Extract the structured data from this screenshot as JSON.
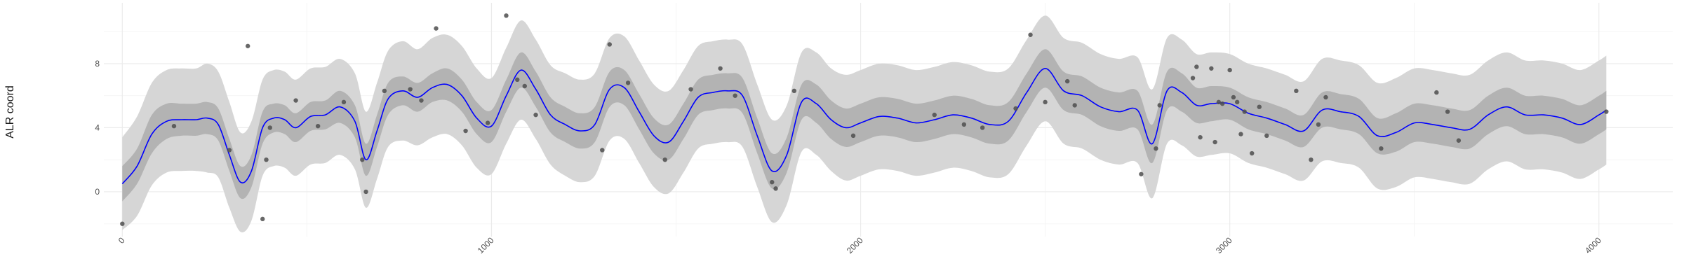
{
  "chart_data": {
    "type": "line",
    "title": "",
    "xlabel": "",
    "ylabel": "ALR coord",
    "xlim": [
      -50,
      4200
    ],
    "ylim": [
      -2.8,
      11.8
    ],
    "x_ticks": [
      0,
      1000,
      2000,
      3000,
      4000
    ],
    "x_tick_labels": [
      "0",
      "1000",
      "2000",
      "3000",
      "4000"
    ],
    "y_ticks": [
      0,
      4,
      8
    ],
    "y_tick_labels": [
      "0",
      "4",
      "8"
    ],
    "grid": true,
    "legend": "none",
    "colors": {
      "mean_line": "#0000ff",
      "inner_band": "#b3b3b3",
      "outer_band": "#d6d6d6",
      "points": "#4d4d4d",
      "grid_major": "#ebebeb",
      "grid_minor": "#f5f5f5"
    },
    "series": [
      {
        "role": "posterior-mean",
        "x": [
          0,
          40,
          80,
          120,
          160,
          200,
          230,
          260,
          290,
          320,
          350,
          380,
          410,
          440,
          470,
          510,
          550,
          590,
          630,
          660,
          690,
          720,
          760,
          800,
          840,
          880,
          920,
          960,
          1000,
          1040,
          1080,
          1120,
          1160,
          1200,
          1240,
          1280,
          1320,
          1360,
          1400,
          1440,
          1480,
          1520,
          1560,
          1600,
          1640,
          1680,
          1720,
          1760,
          1800,
          1840,
          1880,
          1920,
          1960,
          2000,
          2050,
          2100,
          2150,
          2200,
          2250,
          2300,
          2350,
          2400,
          2450,
          2500,
          2550,
          2600,
          2650,
          2700,
          2750,
          2790,
          2830,
          2870,
          2910,
          2950,
          3000,
          3050,
          3100,
          3150,
          3200,
          3250,
          3300,
          3350,
          3400,
          3450,
          3500,
          3550,
          3600,
          3650,
          3700,
          3750,
          3800,
          3850,
          3900,
          3950,
          4000,
          4020
        ],
        "y": [
          0.5,
          1.6,
          3.6,
          4.4,
          4.5,
          4.5,
          4.6,
          4.2,
          2.3,
          0.6,
          1.3,
          4.0,
          4.6,
          4.5,
          4.0,
          4.7,
          4.8,
          5.3,
          4.4,
          2.0,
          3.8,
          5.8,
          6.3,
          5.9,
          6.5,
          6.7,
          6.0,
          4.6,
          4.1,
          6.0,
          7.6,
          6.4,
          4.8,
          4.2,
          3.8,
          4.2,
          6.4,
          6.5,
          5.0,
          3.5,
          3.1,
          4.4,
          5.9,
          6.2,
          6.3,
          6.0,
          3.5,
          1.3,
          2.3,
          5.6,
          5.5,
          4.5,
          4.0,
          4.3,
          4.7,
          4.6,
          4.3,
          4.5,
          4.8,
          4.6,
          4.2,
          4.4,
          6.2,
          7.7,
          6.3,
          6.0,
          5.3,
          5.0,
          5.1,
          3.0,
          6.3,
          6.2,
          5.4,
          5.5,
          5.5,
          4.9,
          4.6,
          4.2,
          3.8,
          5.1,
          5.0,
          4.7,
          3.5,
          3.7,
          4.3,
          4.2,
          4.0,
          3.9,
          4.8,
          5.3,
          4.8,
          4.8,
          4.6,
          4.2,
          4.8,
          5.1
        ]
      },
      {
        "role": "observations",
        "x": [
          0,
          140,
          290,
          340,
          380,
          390,
          400,
          470,
          530,
          600,
          650,
          660,
          710,
          780,
          810,
          850,
          930,
          990,
          1040,
          1070,
          1090,
          1120,
          1300,
          1320,
          1370,
          1470,
          1540,
          1620,
          1660,
          1760,
          1770,
          1820,
          1980,
          2200,
          2280,
          2330,
          2420,
          2460,
          2500,
          2560,
          2580,
          2760,
          2800,
          2810,
          2900,
          2910,
          2920,
          2950,
          2960,
          2970,
          2980,
          3000,
          3010,
          3020,
          3030,
          3040,
          3060,
          3080,
          3100,
          3180,
          3220,
          3240,
          3260,
          3410,
          3560,
          3590,
          3620,
          4020
        ],
        "y": [
          -2.0,
          4.1,
          2.6,
          9.1,
          -1.7,
          2.0,
          4.0,
          5.7,
          4.1,
          5.6,
          2.0,
          0.0,
          6.3,
          6.4,
          5.7,
          10.2,
          3.8,
          4.3,
          11.0,
          7.0,
          6.6,
          4.8,
          2.6,
          9.2,
          6.8,
          2.0,
          6.4,
          7.7,
          6.0,
          0.6,
          0.2,
          6.3,
          3.5,
          4.8,
          4.2,
          4.0,
          5.2,
          9.8,
          5.6,
          6.9,
          5.4,
          1.1,
          2.7,
          5.4,
          7.1,
          7.8,
          3.4,
          7.7,
          3.1,
          5.6,
          5.5,
          7.6,
          5.9,
          5.6,
          3.6,
          5.0,
          2.4,
          5.3,
          3.5,
          6.3,
          2.0,
          4.2,
          5.9,
          2.7,
          6.2,
          5.0,
          3.2,
          5.0
        ]
      },
      {
        "role": "inner-credible-band",
        "x": [
          0,
          40,
          80,
          120,
          160,
          200,
          230,
          260,
          290,
          320,
          350,
          380,
          410,
          440,
          470,
          510,
          550,
          590,
          630,
          660,
          690,
          720,
          760,
          800,
          840,
          880,
          920,
          960,
          1000,
          1040,
          1080,
          1120,
          1160,
          1200,
          1240,
          1280,
          1320,
          1360,
          1400,
          1440,
          1480,
          1520,
          1560,
          1600,
          1640,
          1680,
          1720,
          1760,
          1800,
          1840,
          1880,
          1920,
          1960,
          2000,
          2050,
          2100,
          2150,
          2200,
          2250,
          2300,
          2350,
          2400,
          2450,
          2500,
          2550,
          2600,
          2650,
          2700,
          2750,
          2790,
          2830,
          2870,
          2910,
          2950,
          3000,
          3050,
          3100,
          3150,
          3200,
          3250,
          3300,
          3350,
          3400,
          3450,
          3500,
          3550,
          3600,
          3650,
          3700,
          3750,
          3800,
          3850,
          3900,
          3950,
          4000,
          4020
        ],
        "lower": [
          -0.6,
          0.5,
          2.4,
          3.3,
          3.5,
          3.5,
          3.6,
          3.2,
          1.3,
          -0.4,
          0.3,
          3.0,
          3.7,
          3.6,
          3.1,
          3.8,
          3.9,
          4.3,
          3.4,
          1.0,
          2.8,
          4.8,
          5.4,
          5.0,
          5.6,
          5.7,
          5.0,
          3.6,
          3.1,
          5.0,
          6.5,
          5.3,
          3.7,
          3.1,
          2.7,
          3.1,
          5.3,
          5.4,
          3.9,
          2.4,
          2.0,
          3.3,
          4.8,
          5.1,
          5.2,
          4.9,
          2.4,
          0.2,
          1.2,
          4.5,
          4.3,
          3.3,
          2.8,
          3.1,
          3.5,
          3.4,
          3.1,
          3.3,
          3.6,
          3.4,
          3.0,
          3.2,
          5.0,
          6.5,
          5.1,
          4.8,
          4.1,
          3.8,
          3.9,
          1.8,
          5.1,
          5.0,
          4.3,
          4.4,
          4.5,
          3.9,
          3.6,
          3.2,
          2.8,
          4.0,
          3.9,
          3.6,
          2.4,
          2.5,
          3.1,
          3.0,
          2.8,
          2.7,
          3.6,
          4.1,
          3.6,
          3.6,
          3.4,
          3.0,
          3.6,
          3.9
        ],
        "upper": [
          1.6,
          2.7,
          4.8,
          5.5,
          5.5,
          5.5,
          5.6,
          5.2,
          3.3,
          1.6,
          2.3,
          5.0,
          5.5,
          5.4,
          4.9,
          5.6,
          5.7,
          6.3,
          5.4,
          3.0,
          4.8,
          6.8,
          7.2,
          6.8,
          7.4,
          7.7,
          7.0,
          5.6,
          5.1,
          7.0,
          8.7,
          7.5,
          5.9,
          5.3,
          4.9,
          5.3,
          7.5,
          7.6,
          6.1,
          4.6,
          4.2,
          5.5,
          7.0,
          7.3,
          7.4,
          7.1,
          4.6,
          2.4,
          3.4,
          6.7,
          6.7,
          5.7,
          5.2,
          5.5,
          5.9,
          5.8,
          5.5,
          5.7,
          6.0,
          5.8,
          5.4,
          5.6,
          7.4,
          8.9,
          7.5,
          7.2,
          6.5,
          6.2,
          6.3,
          4.2,
          7.5,
          7.4,
          6.5,
          6.6,
          6.5,
          5.9,
          5.6,
          5.2,
          4.8,
          6.2,
          6.1,
          5.8,
          4.6,
          4.9,
          5.5,
          5.4,
          5.2,
          5.1,
          6.0,
          6.5,
          6.0,
          6.0,
          5.8,
          5.4,
          6.0,
          6.3
        ]
      },
      {
        "role": "outer-credible-band",
        "x": [
          0,
          40,
          80,
          120,
          160,
          200,
          230,
          260,
          290,
          320,
          350,
          380,
          410,
          440,
          470,
          510,
          550,
          590,
          630,
          660,
          690,
          720,
          760,
          800,
          840,
          880,
          920,
          960,
          1000,
          1040,
          1080,
          1120,
          1160,
          1200,
          1240,
          1280,
          1320,
          1360,
          1400,
          1440,
          1480,
          1520,
          1560,
          1600,
          1640,
          1680,
          1720,
          1760,
          1800,
          1840,
          1880,
          1920,
          1960,
          2000,
          2050,
          2100,
          2150,
          2200,
          2250,
          2300,
          2350,
          2400,
          2450,
          2500,
          2550,
          2600,
          2650,
          2700,
          2750,
          2790,
          2830,
          2870,
          2910,
          2950,
          3000,
          3050,
          3100,
          3150,
          3200,
          3250,
          3300,
          3350,
          3400,
          3450,
          3500,
          3550,
          3600,
          3650,
          3700,
          3750,
          3800,
          3850,
          3900,
          3950,
          4000,
          4020
        ],
        "lower": [
          -2.4,
          -1.5,
          0.4,
          1.2,
          1.3,
          1.3,
          1.2,
          0.9,
          -1.0,
          -2.5,
          -1.8,
          1.0,
          1.6,
          1.5,
          1.0,
          1.7,
          1.8,
          2.3,
          1.4,
          -1.0,
          0.8,
          2.8,
          3.2,
          2.9,
          3.4,
          3.6,
          2.9,
          1.5,
          1.1,
          3.0,
          4.5,
          3.3,
          1.7,
          1.0,
          0.6,
          1.0,
          3.2,
          3.3,
          1.8,
          0.3,
          -0.1,
          1.2,
          2.7,
          3.0,
          3.1,
          2.8,
          0.3,
          -1.9,
          -0.8,
          2.5,
          2.3,
          1.3,
          0.7,
          1.0,
          1.4,
          1.3,
          1.0,
          1.2,
          1.5,
          1.3,
          0.9,
          1.1,
          2.9,
          4.4,
          3.0,
          2.7,
          2.0,
          1.7,
          1.8,
          -0.4,
          3.0,
          2.9,
          2.2,
          2.3,
          2.4,
          1.8,
          1.5,
          1.1,
          0.7,
          1.9,
          1.8,
          1.5,
          0.2,
          0.3,
          0.9,
          0.8,
          0.6,
          0.5,
          1.4,
          1.9,
          1.4,
          1.4,
          1.2,
          0.8,
          1.4,
          1.7
        ],
        "upper": [
          3.4,
          4.7,
          6.8,
          7.6,
          7.7,
          7.7,
          8.0,
          7.5,
          5.6,
          3.7,
          4.4,
          7.0,
          7.6,
          7.5,
          7.0,
          7.7,
          7.8,
          8.3,
          7.4,
          5.0,
          6.8,
          8.8,
          9.4,
          8.9,
          9.6,
          9.8,
          9.1,
          7.7,
          7.1,
          9.0,
          10.7,
          9.5,
          7.9,
          7.4,
          7.0,
          7.4,
          9.6,
          9.7,
          8.2,
          6.7,
          6.3,
          7.6,
          9.1,
          9.4,
          9.5,
          9.2,
          6.7,
          4.5,
          5.4,
          8.7,
          8.7,
          7.7,
          7.3,
          7.6,
          8.0,
          7.9,
          7.6,
          7.8,
          8.1,
          7.9,
          7.5,
          7.7,
          9.5,
          11.0,
          9.6,
          9.3,
          8.6,
          8.3,
          8.4,
          6.4,
          9.6,
          9.5,
          8.6,
          8.7,
          8.6,
          8.0,
          7.7,
          7.3,
          6.9,
          8.3,
          8.2,
          7.9,
          6.8,
          7.1,
          7.7,
          7.6,
          7.4,
          7.3,
          8.2,
          8.7,
          8.2,
          8.2,
          8.0,
          7.6,
          8.2,
          8.5
        ]
      }
    ]
  }
}
